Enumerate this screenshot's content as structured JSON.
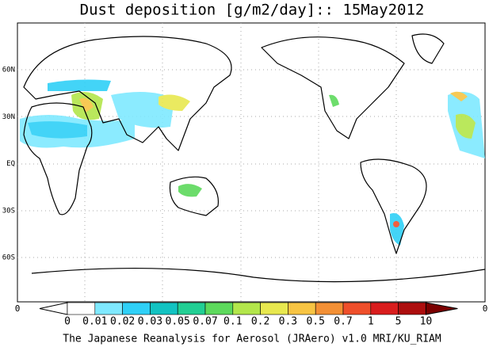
{
  "title": "Dust deposition [g/m2/day]:: 15May2012",
  "lat_labels": [
    "60N",
    "30N",
    "EQ",
    "30S",
    "60S"
  ],
  "colorbar": {
    "end_labels": [
      "0",
      "0"
    ],
    "labels": [
      "0",
      "0.01",
      "0.02",
      "0.03",
      "0.05",
      "0.07",
      "0.1",
      "0.2",
      "0.3",
      "0.5",
      "0.7",
      "1",
      "5",
      "10"
    ],
    "colors": [
      "#ffffff",
      "#ffffff",
      "#7fe9ff",
      "#2fd0f7",
      "#12c3c2",
      "#22cf94",
      "#5dd95c",
      "#b3e64b",
      "#e8e84f",
      "#f7c443",
      "#f39035",
      "#ef4f2b",
      "#d91d1d",
      "#ad0e0e",
      "#7b0000"
    ]
  },
  "footer": "The Japanese Reanalysis for Aerosol (JRAero) v1.0 MRI/KU_RIAM"
}
